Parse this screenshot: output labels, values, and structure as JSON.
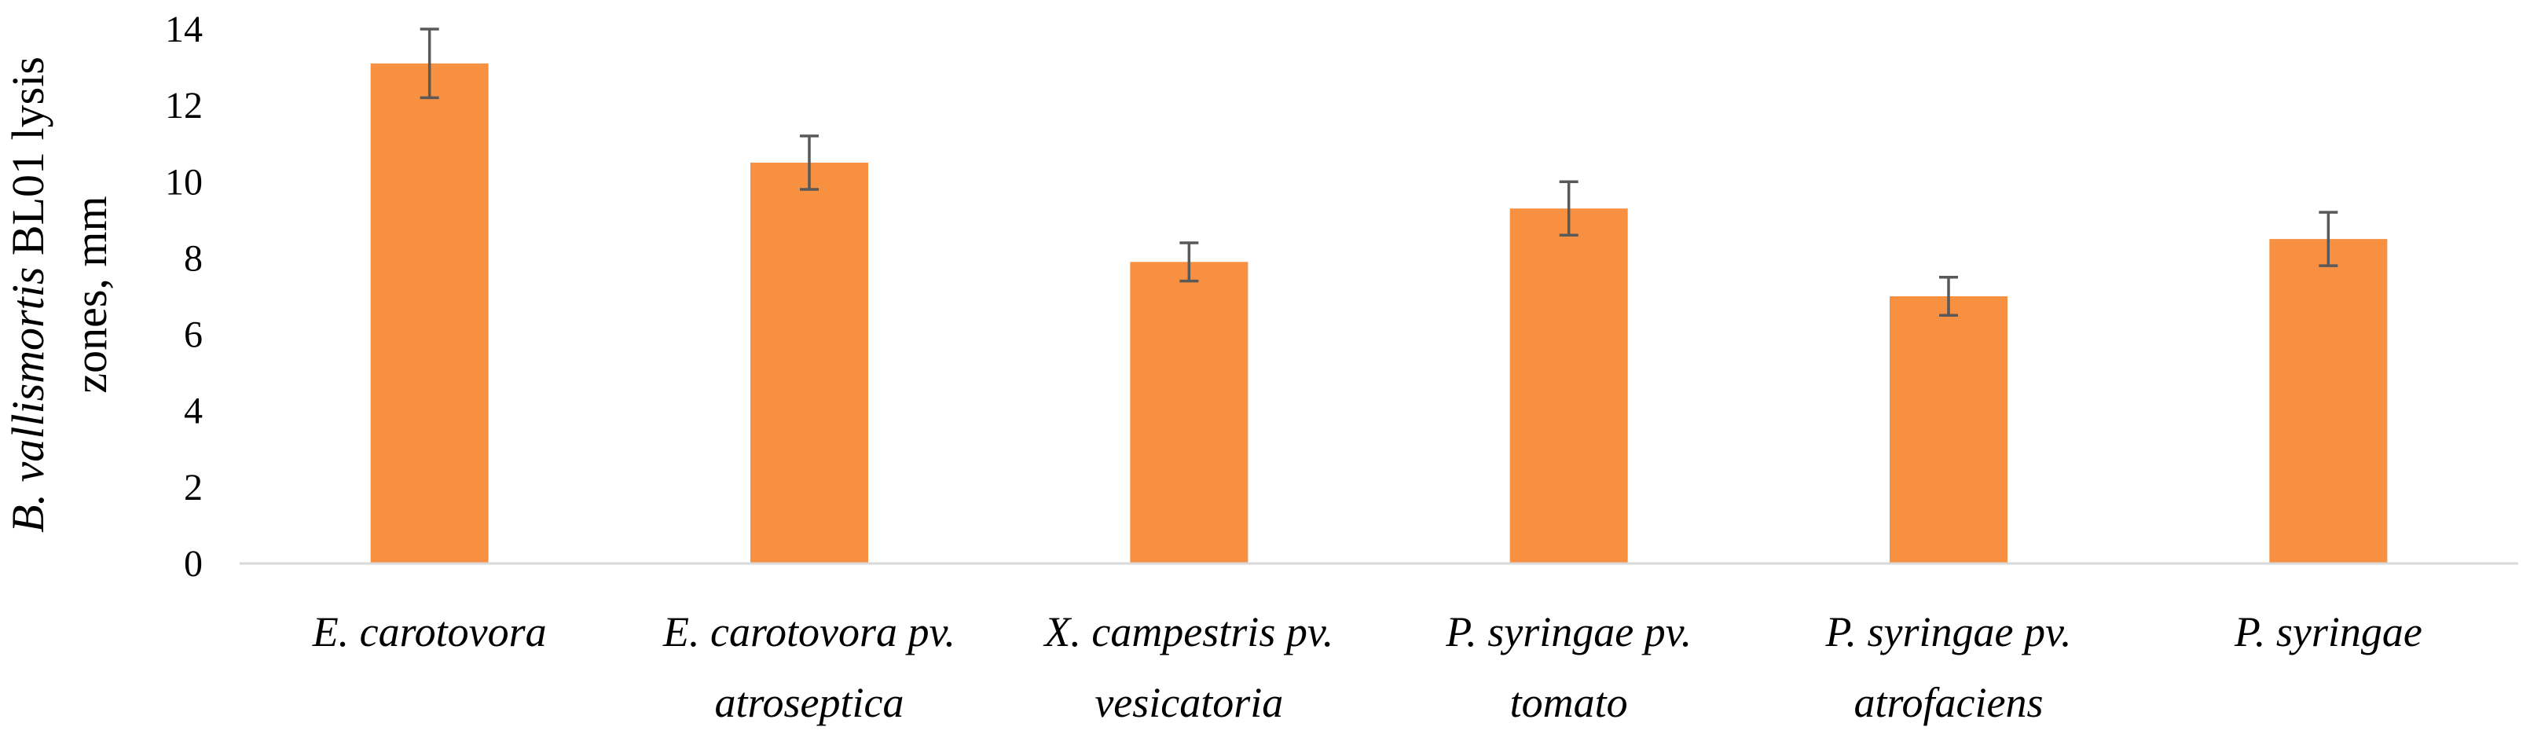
{
  "chart_data": {
    "type": "bar",
    "title": "",
    "xlabel": "",
    "ylabel": {
      "line1_italic": "B. vallismortis",
      "line1_rest": " BL01 lysis",
      "line2": "zones, mm"
    },
    "categories": [
      {
        "line1": "E. carotovora",
        "line2": ""
      },
      {
        "line1": "E. carotovora pv.",
        "line2": "atroseptica"
      },
      {
        "line1": "X. campestris pv.",
        "line2": "vesicatoria"
      },
      {
        "line1": "P. syringae pv.",
        "line2": "tomato"
      },
      {
        "line1": "P. syringae pv.",
        "line2": "atrofaciens"
      },
      {
        "line1": "P. syringae",
        "line2": ""
      }
    ],
    "values": [
      13.1,
      10.5,
      7.9,
      9.3,
      7.0,
      8.5
    ],
    "errors": [
      0.9,
      0.7,
      0.5,
      0.7,
      0.5,
      0.7
    ],
    "ylim": [
      0,
      14
    ],
    "yticks": [
      0,
      2,
      4,
      6,
      8,
      10,
      12,
      14
    ],
    "ytick_labels": [
      "0",
      "2",
      "4",
      "6",
      "8",
      "10",
      "12",
      "14"
    ],
    "grid": false,
    "legend": "none",
    "bar_color": "#F79040",
    "error_bar_color": "#595959",
    "axis_color": "#D9D9D9"
  }
}
